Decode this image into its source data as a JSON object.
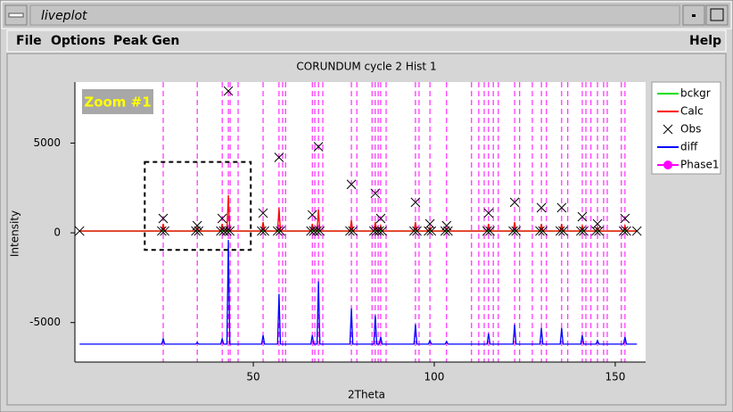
{
  "window": {
    "title": "liveplot"
  },
  "menu": {
    "left": [
      "File",
      "Options",
      "Peak Gen"
    ],
    "right": "Help"
  },
  "chart_data": {
    "type": "line",
    "title": "CORUNDUM cycle 2 Hist 1",
    "x_label": "2Theta",
    "y_label": "Intensity",
    "xlim": [
      0.7,
      158.4
    ],
    "ylim": [
      -7200,
      8400
    ],
    "xticks": [
      50,
      100,
      150
    ],
    "yticks": [
      -5000,
      0,
      5000
    ],
    "grid": false,
    "x": [
      2.0,
      24.7,
      25.1,
      25.5,
      34.1,
      34.5,
      34.9,
      41.0,
      41.4,
      41.8,
      42.7,
      43.1,
      43.5,
      52.3,
      52.7,
      53.1,
      56.7,
      57.1,
      57.5,
      65.9,
      66.3,
      66.7,
      67.6,
      68.0,
      68.4,
      76.7,
      77.1,
      77.5,
      83.3,
      83.7,
      84.1,
      84.8,
      85.2,
      85.6,
      94.4,
      94.8,
      95.2,
      98.4,
      98.8,
      99.2,
      103.0,
      103.4,
      103.8,
      114.6,
      115.0,
      115.4,
      121.8,
      122.2,
      122.6,
      129.2,
      129.6,
      130.0,
      134.8,
      135.2,
      135.6,
      140.5,
      140.9,
      141.3,
      144.7,
      145.1,
      145.5,
      152.3,
      152.7,
      153.1,
      156.0
    ],
    "series": [
      {
        "name": "bckgr",
        "color": "#00e000",
        "x": [
          2.0,
          156.0
        ],
        "values": [
          100,
          100
        ]
      },
      {
        "name": "Calc",
        "color": "#ff0000",
        "values": [
          100,
          100,
          500,
          100,
          100,
          300,
          100,
          100,
          500,
          100,
          100,
          2100,
          100,
          100,
          600,
          100,
          100,
          1400,
          100,
          100,
          500,
          100,
          100,
          1300,
          100,
          100,
          700,
          100,
          100,
          600,
          100,
          100,
          400,
          100,
          100,
          600,
          100,
          100,
          300,
          100,
          100,
          250,
          100,
          100,
          500,
          100,
          100,
          600,
          100,
          100,
          500,
          100,
          100,
          500,
          100,
          100,
          400,
          100,
          100,
          300,
          100,
          100,
          400,
          100,
          100
        ]
      },
      {
        "name": "Obs",
        "color": "#000000",
        "marker": "x",
        "values": [
          100,
          100,
          800,
          100,
          100,
          400,
          100,
          100,
          800,
          100,
          100,
          7900,
          100,
          100,
          1100,
          100,
          100,
          4200,
          100,
          100,
          1000,
          100,
          100,
          4800,
          100,
          100,
          2700,
          100,
          100,
          2200,
          100,
          100,
          800,
          100,
          100,
          1700,
          100,
          100,
          500,
          100,
          100,
          400,
          100,
          100,
          1100,
          100,
          100,
          1700,
          100,
          100,
          1400,
          100,
          100,
          1400,
          100,
          100,
          900,
          100,
          100,
          500,
          100,
          100,
          800,
          100,
          100
        ]
      },
      {
        "name": "diff",
        "color": "#0000ff",
        "values": [
          -6200,
          -6200,
          -5900,
          -6200,
          -6200,
          -6100,
          -6200,
          -6200,
          -5900,
          -6200,
          -6200,
          -400,
          -6200,
          -6200,
          -5700,
          -6200,
          -6200,
          -3400,
          -6200,
          -6200,
          -5700,
          -6200,
          -6200,
          -2700,
          -6200,
          -6200,
          -4200,
          -6200,
          -6200,
          -4600,
          -6200,
          -6200,
          -5800,
          -6200,
          -6200,
          -5100,
          -6200,
          -6200,
          -6000,
          -6200,
          -6200,
          -6050,
          -6200,
          -6200,
          -5600,
          -6200,
          -6200,
          -5100,
          -6200,
          -6200,
          -5300,
          -6200,
          -6200,
          -5300,
          -6200,
          -6200,
          -5700,
          -6200,
          -6200,
          -6000,
          -6200,
          -6200,
          -5800,
          -6200,
          -6200
        ]
      },
      {
        "name": "Phase1",
        "color": "#ff00ff",
        "marker": "o",
        "x": [
          25.1,
          34.5,
          41.4,
          43.1,
          43.6,
          45.8,
          52.7,
          57.1,
          58.1,
          58.9,
          66.3,
          67.0,
          68.0,
          69.2,
          77.1,
          78.6,
          82.8,
          83.7,
          84.5,
          85.2,
          86.7,
          94.8,
          95.8,
          98.8,
          103.4,
          110.3,
          112.3,
          113.8,
          115.0,
          116.3,
          117.7,
          122.2,
          123.6,
          127.1,
          129.6,
          131.0,
          135.2,
          136.9,
          140.9,
          141.9,
          143.3,
          145.1,
          146.8,
          147.8,
          151.7,
          152.7
        ]
      }
    ],
    "zoom_box": {
      "label": "Zoom #1",
      "xlim": [
        20.0,
        49.3
      ],
      "ylim": [
        -950,
        3950
      ]
    }
  }
}
